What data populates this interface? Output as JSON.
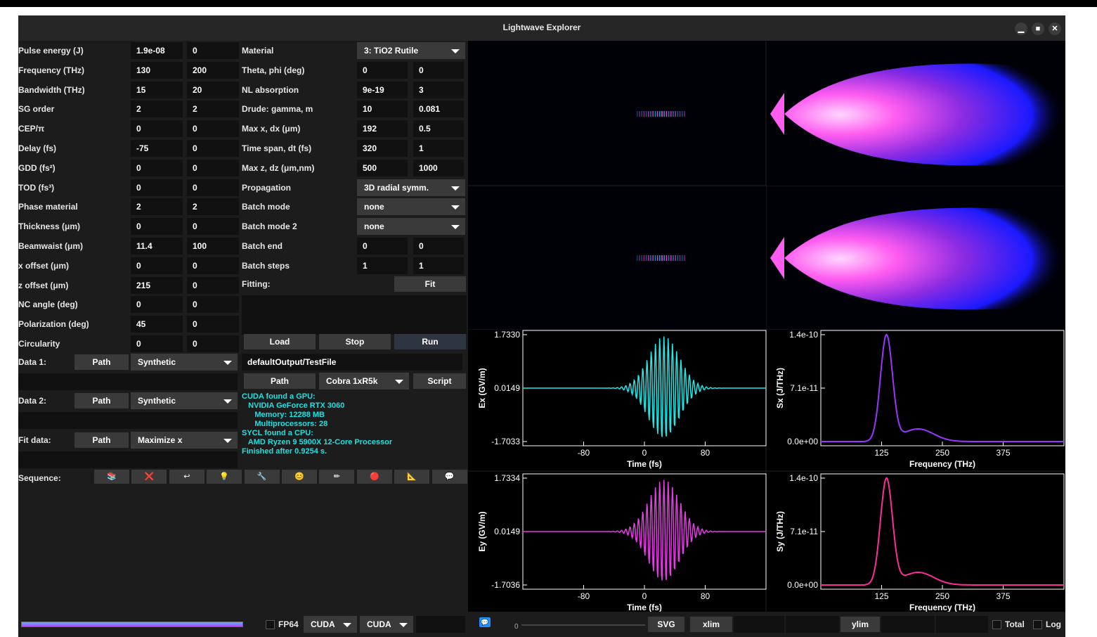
{
  "window": {
    "title": "Lightwave Explorer"
  },
  "window_controls": {
    "minimize": "▁",
    "maximize": "■",
    "close": "✕"
  },
  "params_left": [
    {
      "label": "Pulse energy (J)",
      "v1": "1.9e-08",
      "v2": "0"
    },
    {
      "label": "Frequency (THz)",
      "v1": "130",
      "v2": "200"
    },
    {
      "label": "Bandwidth (THz)",
      "v1": "15",
      "v2": "20"
    },
    {
      "label": "SG order",
      "v1": "2",
      "v2": "2"
    },
    {
      "label": "CEP/π",
      "v1": "0",
      "v2": "0"
    },
    {
      "label": "Delay (fs)",
      "v1": "-75",
      "v2": "0"
    },
    {
      "label": "GDD (fs²)",
      "v1": "0",
      "v2": "0"
    },
    {
      "label": "TOD (fs³)",
      "v1": "0",
      "v2": "0"
    },
    {
      "label": "Phase material",
      "v1": "2",
      "v2": "2"
    },
    {
      "label": "Thickness (μm)",
      "v1": "0",
      "v2": "0"
    },
    {
      "label": "Beamwaist (μm)",
      "v1": "11.4",
      "v2": "100"
    },
    {
      "label": "x offset (μm)",
      "v1": "0",
      "v2": "0"
    },
    {
      "label": "z offset (μm)",
      "v1": "215",
      "v2": "0"
    },
    {
      "label": "NC angle (deg)",
      "v1": "0",
      "v2": "0"
    },
    {
      "label": "Polarization (deg)",
      "v1": "45",
      "v2": "0"
    },
    {
      "label": "Circularity",
      "v1": "0",
      "v2": "0"
    }
  ],
  "params_right": [
    {
      "label": "Material",
      "type": "drop",
      "value": "3: TiO2 Rutile"
    },
    {
      "label": "Theta, phi (deg)",
      "v1": "0",
      "v2": "0"
    },
    {
      "label": "NL absorption",
      "v1": "9e-19",
      "v2": "3"
    },
    {
      "label": "Drude: gamma, m",
      "v1": "10",
      "v2": "0.081"
    },
    {
      "label": "Max x, dx (μm)",
      "v1": "192",
      "v2": "0.5"
    },
    {
      "label": "Time span, dt (fs)",
      "v1": "320",
      "v2": "1"
    },
    {
      "label": "Max z, dz (μm,nm)",
      "v1": "500",
      "v2": "1000"
    },
    {
      "label": "Propagation",
      "type": "drop",
      "value": "3D radial symm."
    },
    {
      "label": "Batch mode",
      "type": "drop",
      "value": "none"
    },
    {
      "label": "Batch mode 2",
      "type": "drop",
      "value": "none"
    },
    {
      "label": "Batch end",
      "v1": "0",
      "v2": "0"
    },
    {
      "label": "Batch steps",
      "v1": "1",
      "v2": "1"
    }
  ],
  "fitting": {
    "label": "Fitting:",
    "button": "Fit"
  },
  "actions": {
    "load": "Load",
    "stop": "Stop",
    "run": "Run"
  },
  "data1": {
    "label": "Data 1:",
    "path": "Path",
    "mode": "Synthetic"
  },
  "data2": {
    "label": "Data 2:",
    "path": "Path",
    "mode": "Synthetic"
  },
  "fitdata": {
    "label": "Fit data:",
    "path": "Path",
    "mode": "Maximize x"
  },
  "output": {
    "file": "defaultOutput/TestFile",
    "path": "Path",
    "cluster": "Cobra 1xR5k",
    "script": "Script"
  },
  "console_lines": [
    "CUDA found a GPU:",
    "   NVIDIA GeForce RTX 3060",
    "      Memory: 12288 MB",
    "      Multiprocessors: 28",
    "SYCL found a CPU:",
    "   AMD Ryzen 9 5900X 12-Core Processor",
    "Finished after 0.9254 s."
  ],
  "sequence": {
    "label": "Sequence:",
    "icons": [
      "📚",
      "❌",
      "↩",
      "💡",
      "🔧",
      "😊",
      "✏",
      "🔴",
      "📐",
      "💬"
    ]
  },
  "status": {
    "fp64": "FP64",
    "backend1": "CUDA",
    "backend2": "CUDA",
    "svg": "SVG",
    "xlim": "xlim",
    "ylim": "ylim",
    "total": "Total",
    "log": "Log",
    "slider_value": "0",
    "icon": "💬"
  },
  "plots": {
    "ex": {
      "ylabel": "Ex (GV/m)",
      "xlabel": "Time (fs)",
      "yticks": [
        "1.7330",
        "0.0149",
        "-1.7033"
      ],
      "xticks": [
        "-80",
        "0",
        "80"
      ],
      "color": "#1ee8e8"
    },
    "ey": {
      "ylabel": "Ey (GV/m)",
      "xlabel": "Time (fs)",
      "yticks": [
        "1.7334",
        "0.0149",
        "-1.7036"
      ],
      "xticks": [
        "-80",
        "0",
        "80"
      ],
      "color": "#e63ce6"
    },
    "sx": {
      "ylabel": "Sx (J/THz)",
      "xlabel": "Frequency (THz)",
      "yticks": [
        "1.4e-10",
        "7.1e-11",
        "0.0e+00"
      ],
      "xticks": [
        "125",
        "250",
        "375"
      ],
      "color": "#9a35ff"
    },
    "sy": {
      "ylabel": "Sy (J/THz)",
      "xlabel": "Frequency (THz)",
      "yticks": [
        "1.4e-10",
        "7.1e-11",
        "0.0e+00"
      ],
      "xticks": [
        "125",
        "250",
        "375"
      ],
      "color": "#ff2d9a"
    }
  }
}
